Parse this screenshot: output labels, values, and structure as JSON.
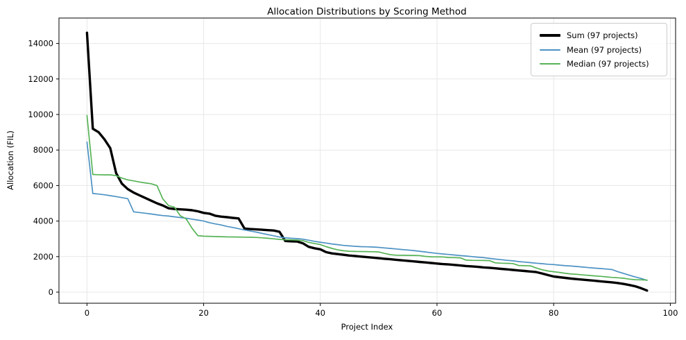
{
  "chart_data": {
    "type": "line",
    "title": "Allocation Distributions by Scoring Method",
    "xlabel": "Project Index",
    "ylabel": "Allocation (FIL)",
    "n_points": 97,
    "x_description": "project index 0..96, values sorted descending",
    "xlim": [
      -4.8,
      100.9
    ],
    "ylim": [
      -625,
      15430
    ],
    "xticks": [
      0,
      20,
      40,
      60,
      80,
      100
    ],
    "yticks": [
      0,
      2000,
      4000,
      6000,
      8000,
      10000,
      12000,
      14000
    ],
    "grid": true,
    "grid_color": "#e7e7e7",
    "spine_color": "#000000",
    "legend_position": "upper right",
    "series": [
      {
        "name": "Sum (97 projects)",
        "color": "#000000",
        "linewidth": 3.4,
        "values": [
          14600,
          9200,
          9000,
          8600,
          8100,
          6700,
          6100,
          5800,
          5600,
          5450,
          5300,
          5150,
          5000,
          4880,
          4720,
          4680,
          4660,
          4640,
          4610,
          4550,
          4460,
          4420,
          4300,
          4250,
          4220,
          4180,
          4150,
          3580,
          3550,
          3530,
          3510,
          3490,
          3470,
          3400,
          2880,
          2860,
          2850,
          2750,
          2550,
          2470,
          2410,
          2250,
          2180,
          2140,
          2100,
          2060,
          2030,
          2000,
          1970,
          1940,
          1910,
          1880,
          1850,
          1820,
          1790,
          1760,
          1730,
          1700,
          1670,
          1640,
          1610,
          1580,
          1560,
          1530,
          1500,
          1470,
          1450,
          1420,
          1390,
          1370,
          1340,
          1310,
          1280,
          1250,
          1220,
          1190,
          1160,
          1130,
          1050,
          960,
          880,
          840,
          800,
          760,
          730,
          700,
          670,
          640,
          610,
          580,
          550,
          510,
          460,
          400,
          330,
          220,
          90
        ]
      },
      {
        "name": "Mean (97 projects)",
        "color": "#4c92c3",
        "linewidth": 1.7,
        "values": [
          8450,
          5550,
          5520,
          5480,
          5430,
          5380,
          5320,
          5260,
          4520,
          4480,
          4440,
          4400,
          4350,
          4310,
          4280,
          4240,
          4200,
          4160,
          4110,
          4060,
          4000,
          3910,
          3840,
          3780,
          3700,
          3640,
          3570,
          3500,
          3440,
          3380,
          3310,
          3240,
          3170,
          3100,
          3060,
          3030,
          3010,
          2980,
          2920,
          2860,
          2810,
          2760,
          2710,
          2670,
          2630,
          2600,
          2580,
          2560,
          2550,
          2540,
          2520,
          2490,
          2460,
          2430,
          2400,
          2370,
          2340,
          2300,
          2260,
          2220,
          2180,
          2150,
          2120,
          2090,
          2060,
          2030,
          2000,
          1970,
          1940,
          1900,
          1860,
          1830,
          1790,
          1760,
          1720,
          1690,
          1660,
          1630,
          1600,
          1570,
          1550,
          1520,
          1490,
          1470,
          1440,
          1410,
          1380,
          1350,
          1330,
          1300,
          1270,
          1150,
          1050,
          950,
          850,
          770,
          660
        ]
      },
      {
        "name": "Median (97 projects)",
        "color": "#56b356",
        "linewidth": 1.7,
        "values": [
          9950,
          6620,
          6610,
          6600,
          6600,
          6560,
          6420,
          6320,
          6260,
          6200,
          6150,
          6100,
          6000,
          5250,
          4870,
          4780,
          4300,
          4120,
          3600,
          3180,
          3150,
          3140,
          3130,
          3120,
          3110,
          3105,
          3100,
          3095,
          3090,
          3080,
          3060,
          3030,
          3000,
          2970,
          2950,
          2940,
          2930,
          2900,
          2800,
          2740,
          2680,
          2560,
          2460,
          2380,
          2330,
          2300,
          2290,
          2285,
          2280,
          2275,
          2260,
          2180,
          2110,
          2080,
          2075,
          2070,
          2065,
          2060,
          2010,
          1990,
          1985,
          1980,
          1950,
          1940,
          1930,
          1800,
          1790,
          1785,
          1780,
          1775,
          1650,
          1630,
          1620,
          1610,
          1500,
          1490,
          1480,
          1360,
          1260,
          1190,
          1150,
          1110,
          1060,
          1020,
          1000,
          970,
          940,
          915,
          890,
          860,
          830,
          810,
          780,
          730,
          700,
          690,
          680
        ]
      }
    ]
  }
}
